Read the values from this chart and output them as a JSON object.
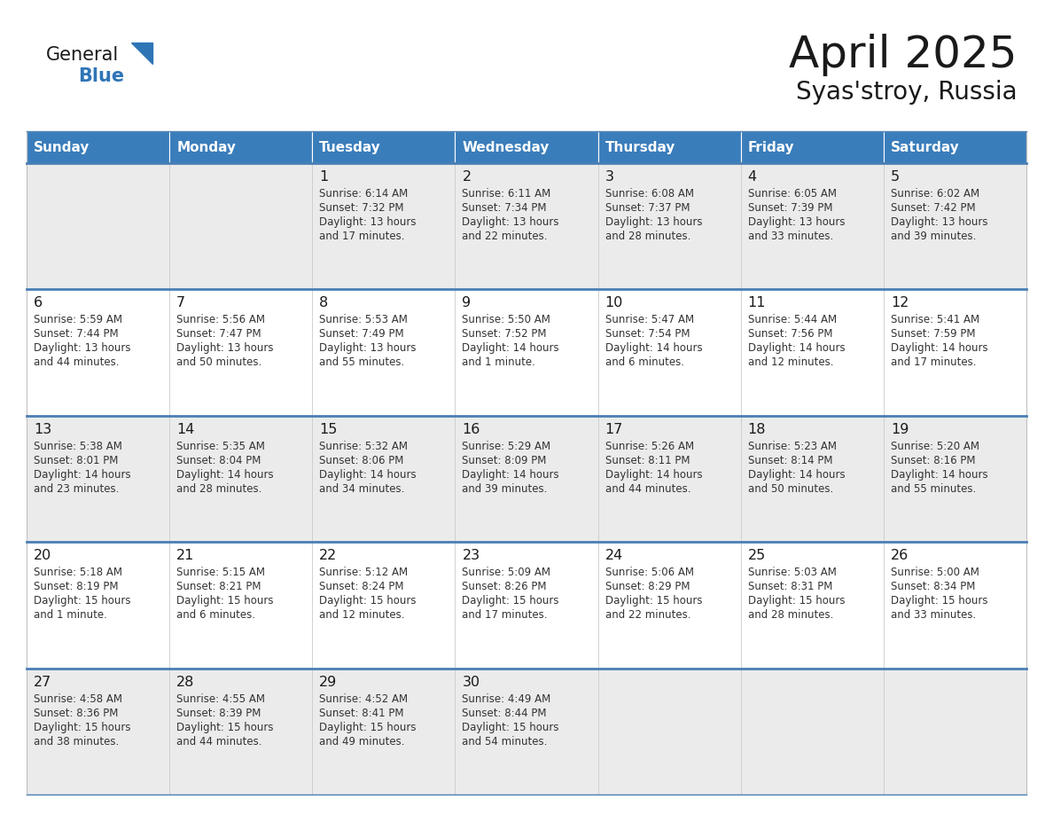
{
  "title": "April 2025",
  "subtitle": "Syas'stroy, Russia",
  "header_color": "#3A7DBB",
  "header_text_color": "#FFFFFF",
  "row_bg_odd": "#EBEBEB",
  "row_bg_even": "#FFFFFF",
  "separator_color": "#4A7FB5",
  "day_names": [
    "Sunday",
    "Monday",
    "Tuesday",
    "Wednesday",
    "Thursday",
    "Friday",
    "Saturday"
  ],
  "weeks": [
    [
      {
        "day": "",
        "lines": []
      },
      {
        "day": "",
        "lines": []
      },
      {
        "day": "1",
        "lines": [
          "Sunrise: 6:14 AM",
          "Sunset: 7:32 PM",
          "Daylight: 13 hours",
          "and 17 minutes."
        ]
      },
      {
        "day": "2",
        "lines": [
          "Sunrise: 6:11 AM",
          "Sunset: 7:34 PM",
          "Daylight: 13 hours",
          "and 22 minutes."
        ]
      },
      {
        "day": "3",
        "lines": [
          "Sunrise: 6:08 AM",
          "Sunset: 7:37 PM",
          "Daylight: 13 hours",
          "and 28 minutes."
        ]
      },
      {
        "day": "4",
        "lines": [
          "Sunrise: 6:05 AM",
          "Sunset: 7:39 PM",
          "Daylight: 13 hours",
          "and 33 minutes."
        ]
      },
      {
        "day": "5",
        "lines": [
          "Sunrise: 6:02 AM",
          "Sunset: 7:42 PM",
          "Daylight: 13 hours",
          "and 39 minutes."
        ]
      }
    ],
    [
      {
        "day": "6",
        "lines": [
          "Sunrise: 5:59 AM",
          "Sunset: 7:44 PM",
          "Daylight: 13 hours",
          "and 44 minutes."
        ]
      },
      {
        "day": "7",
        "lines": [
          "Sunrise: 5:56 AM",
          "Sunset: 7:47 PM",
          "Daylight: 13 hours",
          "and 50 minutes."
        ]
      },
      {
        "day": "8",
        "lines": [
          "Sunrise: 5:53 AM",
          "Sunset: 7:49 PM",
          "Daylight: 13 hours",
          "and 55 minutes."
        ]
      },
      {
        "day": "9",
        "lines": [
          "Sunrise: 5:50 AM",
          "Sunset: 7:52 PM",
          "Daylight: 14 hours",
          "and 1 minute."
        ]
      },
      {
        "day": "10",
        "lines": [
          "Sunrise: 5:47 AM",
          "Sunset: 7:54 PM",
          "Daylight: 14 hours",
          "and 6 minutes."
        ]
      },
      {
        "day": "11",
        "lines": [
          "Sunrise: 5:44 AM",
          "Sunset: 7:56 PM",
          "Daylight: 14 hours",
          "and 12 minutes."
        ]
      },
      {
        "day": "12",
        "lines": [
          "Sunrise: 5:41 AM",
          "Sunset: 7:59 PM",
          "Daylight: 14 hours",
          "and 17 minutes."
        ]
      }
    ],
    [
      {
        "day": "13",
        "lines": [
          "Sunrise: 5:38 AM",
          "Sunset: 8:01 PM",
          "Daylight: 14 hours",
          "and 23 minutes."
        ]
      },
      {
        "day": "14",
        "lines": [
          "Sunrise: 5:35 AM",
          "Sunset: 8:04 PM",
          "Daylight: 14 hours",
          "and 28 minutes."
        ]
      },
      {
        "day": "15",
        "lines": [
          "Sunrise: 5:32 AM",
          "Sunset: 8:06 PM",
          "Daylight: 14 hours",
          "and 34 minutes."
        ]
      },
      {
        "day": "16",
        "lines": [
          "Sunrise: 5:29 AM",
          "Sunset: 8:09 PM",
          "Daylight: 14 hours",
          "and 39 minutes."
        ]
      },
      {
        "day": "17",
        "lines": [
          "Sunrise: 5:26 AM",
          "Sunset: 8:11 PM",
          "Daylight: 14 hours",
          "and 44 minutes."
        ]
      },
      {
        "day": "18",
        "lines": [
          "Sunrise: 5:23 AM",
          "Sunset: 8:14 PM",
          "Daylight: 14 hours",
          "and 50 minutes."
        ]
      },
      {
        "day": "19",
        "lines": [
          "Sunrise: 5:20 AM",
          "Sunset: 8:16 PM",
          "Daylight: 14 hours",
          "and 55 minutes."
        ]
      }
    ],
    [
      {
        "day": "20",
        "lines": [
          "Sunrise: 5:18 AM",
          "Sunset: 8:19 PM",
          "Daylight: 15 hours",
          "and 1 minute."
        ]
      },
      {
        "day": "21",
        "lines": [
          "Sunrise: 5:15 AM",
          "Sunset: 8:21 PM",
          "Daylight: 15 hours",
          "and 6 minutes."
        ]
      },
      {
        "day": "22",
        "lines": [
          "Sunrise: 5:12 AM",
          "Sunset: 8:24 PM",
          "Daylight: 15 hours",
          "and 12 minutes."
        ]
      },
      {
        "day": "23",
        "lines": [
          "Sunrise: 5:09 AM",
          "Sunset: 8:26 PM",
          "Daylight: 15 hours",
          "and 17 minutes."
        ]
      },
      {
        "day": "24",
        "lines": [
          "Sunrise: 5:06 AM",
          "Sunset: 8:29 PM",
          "Daylight: 15 hours",
          "and 22 minutes."
        ]
      },
      {
        "day": "25",
        "lines": [
          "Sunrise: 5:03 AM",
          "Sunset: 8:31 PM",
          "Daylight: 15 hours",
          "and 28 minutes."
        ]
      },
      {
        "day": "26",
        "lines": [
          "Sunrise: 5:00 AM",
          "Sunset: 8:34 PM",
          "Daylight: 15 hours",
          "and 33 minutes."
        ]
      }
    ],
    [
      {
        "day": "27",
        "lines": [
          "Sunrise: 4:58 AM",
          "Sunset: 8:36 PM",
          "Daylight: 15 hours",
          "and 38 minutes."
        ]
      },
      {
        "day": "28",
        "lines": [
          "Sunrise: 4:55 AM",
          "Sunset: 8:39 PM",
          "Daylight: 15 hours",
          "and 44 minutes."
        ]
      },
      {
        "day": "29",
        "lines": [
          "Sunrise: 4:52 AM",
          "Sunset: 8:41 PM",
          "Daylight: 15 hours",
          "and 49 minutes."
        ]
      },
      {
        "day": "30",
        "lines": [
          "Sunrise: 4:49 AM",
          "Sunset: 8:44 PM",
          "Daylight: 15 hours",
          "and 54 minutes."
        ]
      },
      {
        "day": "",
        "lines": []
      },
      {
        "day": "",
        "lines": []
      },
      {
        "day": "",
        "lines": []
      }
    ]
  ]
}
